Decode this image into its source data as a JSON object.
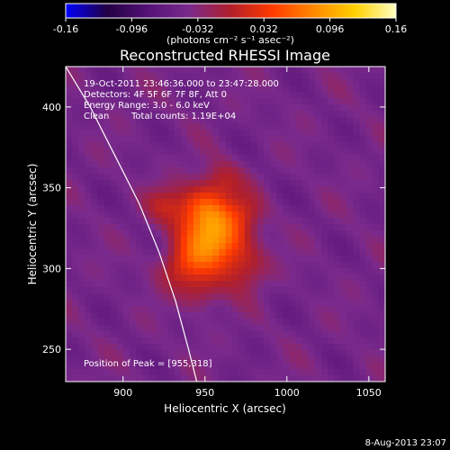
{
  "chart_data": {
    "type": "heatmap",
    "title": "Reconstructed RHESSI Image",
    "xlabel": "Heliocentric X (arcsec)",
    "ylabel": "Heliocentric Y (arcsec)",
    "xlim": [
      865,
      1060
    ],
    "ylim": [
      230,
      425
    ],
    "x_ticks": [
      900,
      950,
      1000,
      1050
    ],
    "y_ticks": [
      250,
      300,
      350,
      400
    ],
    "colorbar": {
      "range": [
        -0.16,
        0.16
      ],
      "tick_values": [
        -0.16,
        -0.096,
        -0.032,
        0.032,
        0.096,
        0.16
      ],
      "tick_labels": [
        "-0.16",
        "-0.096",
        "-0.032",
        "0.032",
        "0.096",
        "0.16"
      ],
      "label": "(photons cm⁻² s⁻¹ asec⁻²)",
      "colormap": [
        "#0000ff",
        "#220044",
        "#551277",
        "#7a2a8c",
        "#b11f2a",
        "#ff3a00",
        "#ff8800",
        "#ffd000",
        "#ffffc0"
      ]
    },
    "annotations": {
      "time_range": "19-Oct-2011 23:46:36.000 to 23:47:28.000",
      "detectors": "Detectors: 4F 5F 6F 7F 8F, Att 0",
      "energy": "Energy Range: 3.0 - 6.0 keV",
      "method": "Clean",
      "total_counts": "Total counts: 1.19E+04",
      "peak": "Position of Peak = [955,318]"
    },
    "peak": [
      955,
      318
    ],
    "limb_curve": [
      [
        865,
        425
      ],
      [
        880,
        400
      ],
      [
        895,
        370
      ],
      [
        910,
        340
      ],
      [
        922,
        310
      ],
      [
        932,
        280
      ],
      [
        940,
        250
      ],
      [
        945,
        230
      ]
    ],
    "source_blobs": [
      {
        "x": 955,
        "y": 318,
        "sx": 14,
        "sy": 14,
        "amp": 0.13
      },
      {
        "x": 948,
        "y": 338,
        "sx": 12,
        "sy": 10,
        "amp": 0.07
      },
      {
        "x": 960,
        "y": 355,
        "sx": 9,
        "sy": 8,
        "amp": 0.04
      },
      {
        "x": 935,
        "y": 300,
        "sx": 10,
        "sy": 9,
        "amp": 0.05
      },
      {
        "x": 948,
        "y": 285,
        "sx": 9,
        "sy": 8,
        "amp": 0.04
      },
      {
        "x": 975,
        "y": 300,
        "sx": 9,
        "sy": 10,
        "amp": 0.04
      },
      {
        "x": 925,
        "y": 340,
        "sx": 8,
        "sy": 8,
        "amp": 0.035
      },
      {
        "x": 975,
        "y": 335,
        "sx": 8,
        "sy": 8,
        "amp": 0.03
      }
    ]
  },
  "footer": {
    "date": "8-Aug-2013 23:07"
  }
}
